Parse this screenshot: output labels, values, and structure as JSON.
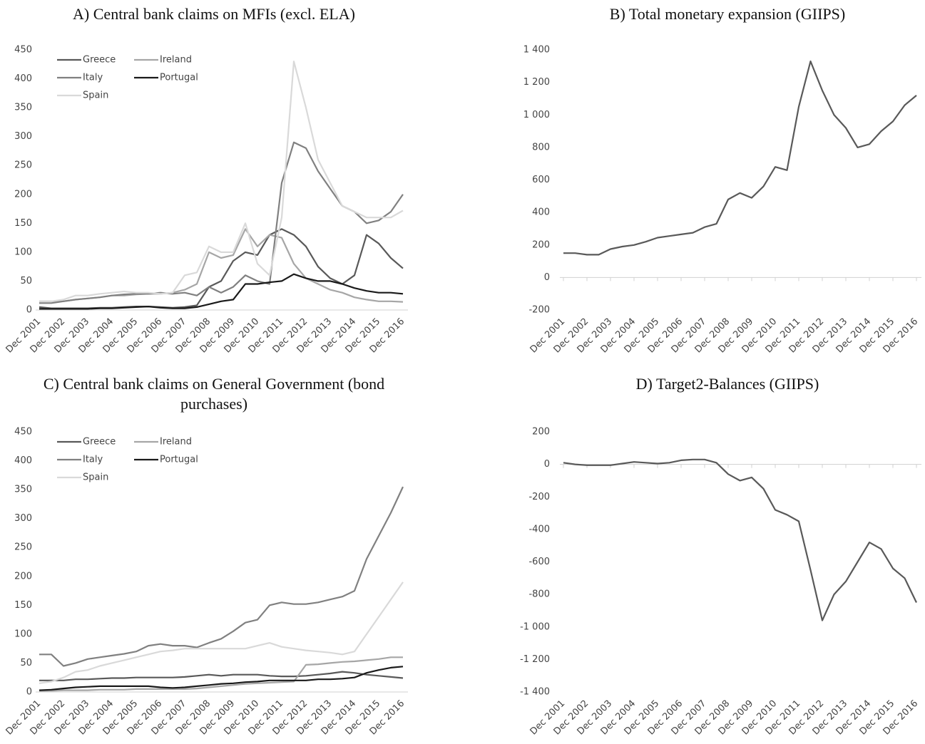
{
  "chart_data": [
    {
      "type": "line",
      "title": "A) Central bank claims on MFIs (excl. ELA)",
      "legend": "upper left",
      "categories": [
        "Dec 2001",
        null,
        "Dec 2002",
        null,
        "Dec 2003",
        null,
        "Dec 2004",
        null,
        "Dec 2005",
        null,
        "Dec 2006",
        null,
        "Dec 2007",
        null,
        "Dec 2008",
        null,
        "Dec 2009",
        null,
        "Dec 2010",
        null,
        "Dec 2011",
        null,
        "Dec 2012",
        null,
        "Dec 2013",
        null,
        "Dec 2014",
        null,
        "Dec 2015",
        null,
        "Dec 2016"
      ],
      "ylim": [
        0,
        450
      ],
      "yticks": [
        0,
        50,
        100,
        150,
        200,
        250,
        300,
        350,
        400,
        450
      ],
      "series": [
        {
          "name": "Greece",
          "color": "#595959",
          "values": [
            5,
            3,
            3,
            3,
            3,
            4,
            4,
            5,
            6,
            6,
            5,
            4,
            5,
            8,
            40,
            50,
            85,
            100,
            95,
            130,
            140,
            130,
            110,
            75,
            55,
            45,
            60,
            130,
            115,
            90,
            72
          ]
        },
        {
          "name": "Ireland",
          "color": "#a6a6a6",
          "values": [
            15,
            15,
            15,
            18,
            20,
            22,
            25,
            25,
            27,
            28,
            28,
            30,
            35,
            45,
            100,
            90,
            95,
            140,
            110,
            130,
            125,
            80,
            55,
            45,
            35,
            30,
            22,
            18,
            15,
            15,
            14
          ]
        },
        {
          "name": "Italy",
          "color": "#808080",
          "values": [
            12,
            12,
            15,
            18,
            20,
            22,
            25,
            27,
            28,
            28,
            30,
            28,
            30,
            25,
            40,
            30,
            40,
            60,
            50,
            45,
            220,
            290,
            280,
            240,
            210,
            180,
            170,
            150,
            155,
            170,
            200
          ]
        },
        {
          "name": "Portugal",
          "color": "#1a1a1a",
          "values": [
            2,
            2,
            2,
            2,
            2,
            3,
            3,
            4,
            5,
            6,
            4,
            3,
            3,
            5,
            10,
            15,
            18,
            45,
            45,
            48,
            50,
            62,
            55,
            50,
            50,
            45,
            38,
            33,
            30,
            30,
            28
          ]
        },
        {
          "name": "Spain",
          "color": "#d9d9d9",
          "values": [
            15,
            15,
            18,
            25,
            25,
            28,
            30,
            32,
            30,
            30,
            28,
            30,
            60,
            65,
            110,
            100,
            100,
            150,
            80,
            60,
            160,
            430,
            350,
            260,
            220,
            180,
            170,
            160,
            160,
            160,
            172
          ]
        }
      ]
    },
    {
      "type": "line",
      "title": "B) Total monetary expansion (GIIPS)",
      "categories": [
        "Dec 2001",
        null,
        "Dec 2002",
        null,
        "Dec 2003",
        null,
        "Dec 2004",
        null,
        "Dec 2005",
        null,
        "Dec 2006",
        null,
        "Dec 2007",
        null,
        "Dec 2008",
        null,
        "Dec 2009",
        null,
        "Dec 2010",
        null,
        "Dec 2011",
        null,
        "Dec 2012",
        null,
        "Dec 2013",
        null,
        "Dec 2014",
        null,
        "Dec 2015",
        null,
        "Dec 2016"
      ],
      "ylim": [
        -200,
        1400
      ],
      "yticks": [
        -200,
        0,
        200,
        400,
        600,
        800,
        {
          "value": 1000,
          "label": "1 000"
        },
        {
          "value": 1200,
          "label": "1 200"
        },
        {
          "value": 1400,
          "label": "1 400"
        }
      ],
      "series": [
        {
          "name": "Total",
          "color": "#595959",
          "values": [
            150,
            150,
            140,
            140,
            175,
            190,
            200,
            220,
            245,
            255,
            265,
            275,
            310,
            330,
            480,
            520,
            490,
            560,
            680,
            660,
            1050,
            1330,
            1150,
            1000,
            920,
            800,
            820,
            900,
            960,
            1060,
            1120
          ]
        }
      ]
    },
    {
      "type": "line",
      "title": "C) Central bank claims on General Government (bond purchases)",
      "legend": "upper left",
      "categories": [
        "Dec 2001",
        null,
        "Dec 2002",
        null,
        "Dec 2003",
        null,
        "Dec 2004",
        null,
        "Dec 2005",
        null,
        "Dec 2006",
        null,
        "Dec 2007",
        null,
        "Dec 2008",
        null,
        "Dec 2009",
        null,
        "Dec 2010",
        null,
        "Dec 2011",
        null,
        "Dec 2012",
        null,
        "Dec 2013",
        null,
        "Dec 2014",
        null,
        "Dec 2015",
        null,
        "Dec 2016"
      ],
      "ylim": [
        0,
        450
      ],
      "yticks": [
        0,
        50,
        100,
        150,
        200,
        250,
        300,
        350,
        400,
        450
      ],
      "series": [
        {
          "name": "Greece",
          "color": "#595959",
          "values": [
            20,
            20,
            20,
            22,
            22,
            23,
            24,
            24,
            25,
            25,
            25,
            25,
            26,
            28,
            30,
            28,
            30,
            30,
            30,
            28,
            27,
            27,
            28,
            30,
            32,
            35,
            33,
            30,
            28,
            26,
            24
          ]
        },
        {
          "name": "Ireland",
          "color": "#a6a6a6",
          "values": [
            2,
            2,
            3,
            3,
            3,
            4,
            4,
            4,
            5,
            5,
            5,
            5,
            5,
            6,
            8,
            10,
            12,
            14,
            15,
            16,
            17,
            18,
            47,
            48,
            50,
            52,
            53,
            55,
            57,
            60,
            60
          ]
        },
        {
          "name": "Italy",
          "color": "#808080",
          "values": [
            65,
            65,
            45,
            50,
            57,
            60,
            63,
            66,
            70,
            80,
            83,
            80,
            80,
            77,
            85,
            92,
            105,
            120,
            125,
            150,
            155,
            152,
            152,
            155,
            160,
            165,
            175,
            230,
            270,
            310,
            355
          ]
        },
        {
          "name": "Portugal",
          "color": "#1a1a1a",
          "values": [
            3,
            4,
            6,
            8,
            9,
            10,
            10,
            10,
            10,
            10,
            8,
            7,
            8,
            10,
            12,
            14,
            15,
            17,
            18,
            20,
            20,
            20,
            20,
            22,
            22,
            23,
            25,
            33,
            38,
            42,
            44
          ]
        },
        {
          "name": "Spain",
          "color": "#d9d9d9",
          "values": [
            15,
            18,
            25,
            35,
            38,
            45,
            50,
            55,
            60,
            65,
            70,
            72,
            75,
            75,
            75,
            75,
            75,
            75,
            80,
            85,
            78,
            75,
            72,
            70,
            68,
            65,
            70,
            100,
            130,
            160,
            190
          ]
        }
      ]
    },
    {
      "type": "line",
      "title": "D) Target2-Balances (GIIPS)",
      "categories": [
        "Dec 2001",
        null,
        "Dec 2002",
        null,
        "Dec 2003",
        null,
        "Dec 2004",
        null,
        "Dec 2005",
        null,
        "Dec 2006",
        null,
        "Dec 2007",
        null,
        "Dec 2008",
        null,
        "Dec 2009",
        null,
        "Dec 2010",
        null,
        "Dec 2011",
        null,
        "Dec 2012",
        null,
        "Dec 2013",
        null,
        "Dec 2014",
        null,
        "Dec 2015",
        null,
        "Dec 2016"
      ],
      "ylim": [
        -1400,
        200
      ],
      "yticks": [
        {
          "value": -1400,
          "label": "-1 400"
        },
        {
          "value": -1200,
          "label": "-1 200"
        },
        {
          "value": -1000,
          "label": "-1 000"
        },
        -800,
        -600,
        -400,
        -200,
        0,
        200
      ],
      "series": [
        {
          "name": "Target2",
          "color": "#595959",
          "values": [
            10,
            0,
            -5,
            -5,
            -5,
            5,
            15,
            10,
            5,
            10,
            25,
            30,
            30,
            10,
            -60,
            -100,
            -80,
            -150,
            -280,
            -310,
            -350,
            -650,
            -960,
            -800,
            -720,
            -600,
            -480,
            -520,
            -640,
            -700,
            -850
          ]
        }
      ]
    }
  ]
}
